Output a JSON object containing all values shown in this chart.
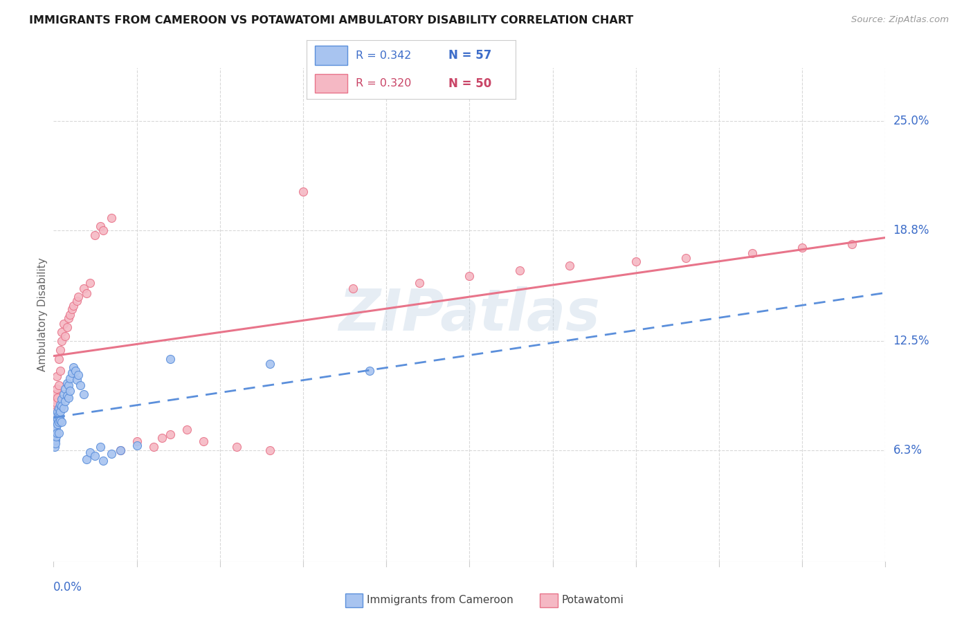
{
  "title": "IMMIGRANTS FROM CAMEROON VS POTAWATOMI AMBULATORY DISABILITY CORRELATION CHART",
  "source": "Source: ZipAtlas.com",
  "ylabel": "Ambulatory Disability",
  "yticks": [
    0.063,
    0.125,
    0.188,
    0.25
  ],
  "ytick_labels": [
    "6.3%",
    "12.5%",
    "18.8%",
    "25.0%"
  ],
  "xmin": 0.0,
  "xmax": 0.5,
  "ymin": 0.0,
  "ymax": 0.28,
  "watermark": "ZIPatlas",
  "legend_r1": "R = 0.342",
  "legend_n1": "N = 57",
  "legend_r2": "R = 0.320",
  "legend_n2": "N = 50",
  "blue_color": "#5b8fdb",
  "pink_color": "#e8748a",
  "blue_fill": "#a8c4f0",
  "pink_fill": "#f5b8c4",
  "cameroon_x": [
    0.0005,
    0.0005,
    0.0008,
    0.0008,
    0.001,
    0.001,
    0.001,
    0.0012,
    0.0012,
    0.0015,
    0.0015,
    0.0015,
    0.002,
    0.002,
    0.002,
    0.0022,
    0.0022,
    0.0025,
    0.003,
    0.003,
    0.003,
    0.003,
    0.0035,
    0.004,
    0.004,
    0.004,
    0.005,
    0.005,
    0.005,
    0.006,
    0.006,
    0.007,
    0.007,
    0.008,
    0.008,
    0.009,
    0.009,
    0.01,
    0.01,
    0.011,
    0.012,
    0.013,
    0.014,
    0.015,
    0.016,
    0.018,
    0.02,
    0.022,
    0.025,
    0.028,
    0.03,
    0.035,
    0.04,
    0.05,
    0.07,
    0.13,
    0.19
  ],
  "cameroon_y": [
    0.073,
    0.068,
    0.071,
    0.065,
    0.078,
    0.075,
    0.069,
    0.072,
    0.067,
    0.08,
    0.076,
    0.071,
    0.083,
    0.079,
    0.073,
    0.085,
    0.078,
    0.081,
    0.087,
    0.083,
    0.079,
    0.073,
    0.082,
    0.089,
    0.085,
    0.08,
    0.092,
    0.088,
    0.079,
    0.095,
    0.087,
    0.098,
    0.091,
    0.101,
    0.094,
    0.1,
    0.093,
    0.104,
    0.097,
    0.107,
    0.11,
    0.108,
    0.103,
    0.106,
    0.1,
    0.095,
    0.058,
    0.062,
    0.06,
    0.065,
    0.057,
    0.061,
    0.063,
    0.066,
    0.115,
    0.112,
    0.108
  ],
  "potawatomi_x": [
    0.0005,
    0.0008,
    0.001,
    0.0012,
    0.0015,
    0.002,
    0.002,
    0.0025,
    0.003,
    0.003,
    0.004,
    0.004,
    0.005,
    0.005,
    0.006,
    0.007,
    0.008,
    0.009,
    0.01,
    0.011,
    0.012,
    0.014,
    0.015,
    0.018,
    0.02,
    0.022,
    0.025,
    0.028,
    0.03,
    0.035,
    0.04,
    0.05,
    0.06,
    0.065,
    0.07,
    0.08,
    0.09,
    0.11,
    0.13,
    0.15,
    0.18,
    0.22,
    0.25,
    0.28,
    0.31,
    0.35,
    0.38,
    0.42,
    0.45,
    0.48
  ],
  "potawatomi_y": [
    0.088,
    0.092,
    0.095,
    0.085,
    0.09,
    0.098,
    0.105,
    0.093,
    0.1,
    0.115,
    0.108,
    0.12,
    0.13,
    0.125,
    0.135,
    0.128,
    0.133,
    0.138,
    0.14,
    0.143,
    0.145,
    0.148,
    0.15,
    0.155,
    0.152,
    0.158,
    0.185,
    0.19,
    0.188,
    0.195,
    0.063,
    0.068,
    0.065,
    0.07,
    0.072,
    0.075,
    0.068,
    0.065,
    0.063,
    0.21,
    0.155,
    0.158,
    0.162,
    0.165,
    0.168,
    0.17,
    0.172,
    0.175,
    0.178,
    0.18
  ],
  "grid_color": "#d8d8d8",
  "axis_color": "#cccccc",
  "text_color_blue": "#3d6dc9",
  "text_color_pink": "#c94466"
}
